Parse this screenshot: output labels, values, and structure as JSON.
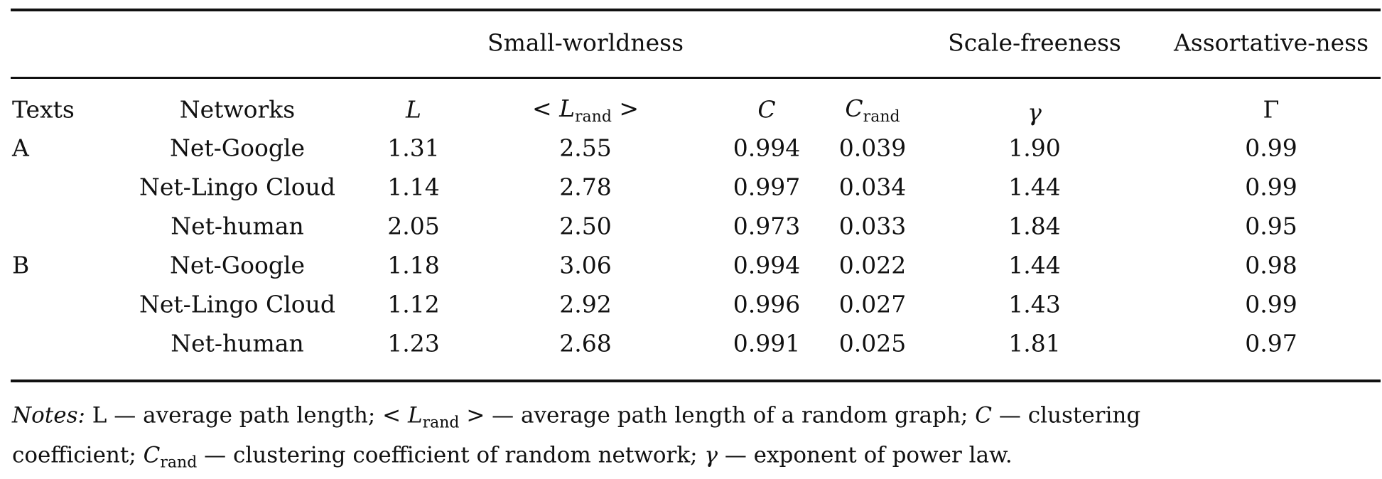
{
  "group_headers": {
    "small_worldness": "Small-worldness",
    "scale_freeness": "Scale-freeness",
    "assortativeness": "Assortative-ness"
  },
  "columns": {
    "texts": "Texts",
    "networks": "Networks",
    "L": "L",
    "Lrand_open": "<",
    "Lrand_sym": "L",
    "Lrand_sub": "rand",
    "Lrand_close": ">",
    "C": "C",
    "Crand_sym": "C",
    "Crand_sub": "rand",
    "gamma": "γ",
    "Gamma": "Γ"
  },
  "rows": [
    {
      "text": "A",
      "network": "Net-Google",
      "L": "1.31",
      "Lrand": "2.55",
      "C": "0.994",
      "Crand": "0.039",
      "gamma": "1.90",
      "Gamma": "0.99"
    },
    {
      "text": "",
      "network": "Net-Lingo Cloud",
      "L": "1.14",
      "Lrand": "2.78",
      "C": "0.997",
      "Crand": "0.034",
      "gamma": "1.44",
      "Gamma": "0.99"
    },
    {
      "text": "",
      "network": "Net-human",
      "L": "2.05",
      "Lrand": "2.50",
      "C": "0.973",
      "Crand": "0.033",
      "gamma": "1.84",
      "Gamma": "0.95"
    },
    {
      "text": "B",
      "network": "Net-Google",
      "L": "1.18",
      "Lrand": "3.06",
      "C": "0.994",
      "Crand": "0.022",
      "gamma": "1.44",
      "Gamma": "0.98"
    },
    {
      "text": "",
      "network": "Net-Lingo Cloud",
      "L": "1.12",
      "Lrand": "2.92",
      "C": "0.996",
      "Crand": "0.027",
      "gamma": "1.43",
      "Gamma": "0.99"
    },
    {
      "text": "",
      "network": "Net-human",
      "L": "1.23",
      "Lrand": "2.68",
      "C": "0.991",
      "Crand": "0.025",
      "gamma": "1.81",
      "Gamma": "0.97"
    }
  ],
  "notes": {
    "label": "Notes:",
    "l1a": " L — average path length; < ",
    "l1_L": "L",
    "l1_sub": "rand",
    "l1b": " > — average path length of a random graph; ",
    "l1_C": "C",
    "l1c": " — clustering",
    "l2a": "coefficient; ",
    "l2_C": "C",
    "l2_sub": "rand",
    "l2b": " — clustering coefficient of random network; ",
    "l2_g": "γ",
    "l2c": " — exponent of power law."
  }
}
